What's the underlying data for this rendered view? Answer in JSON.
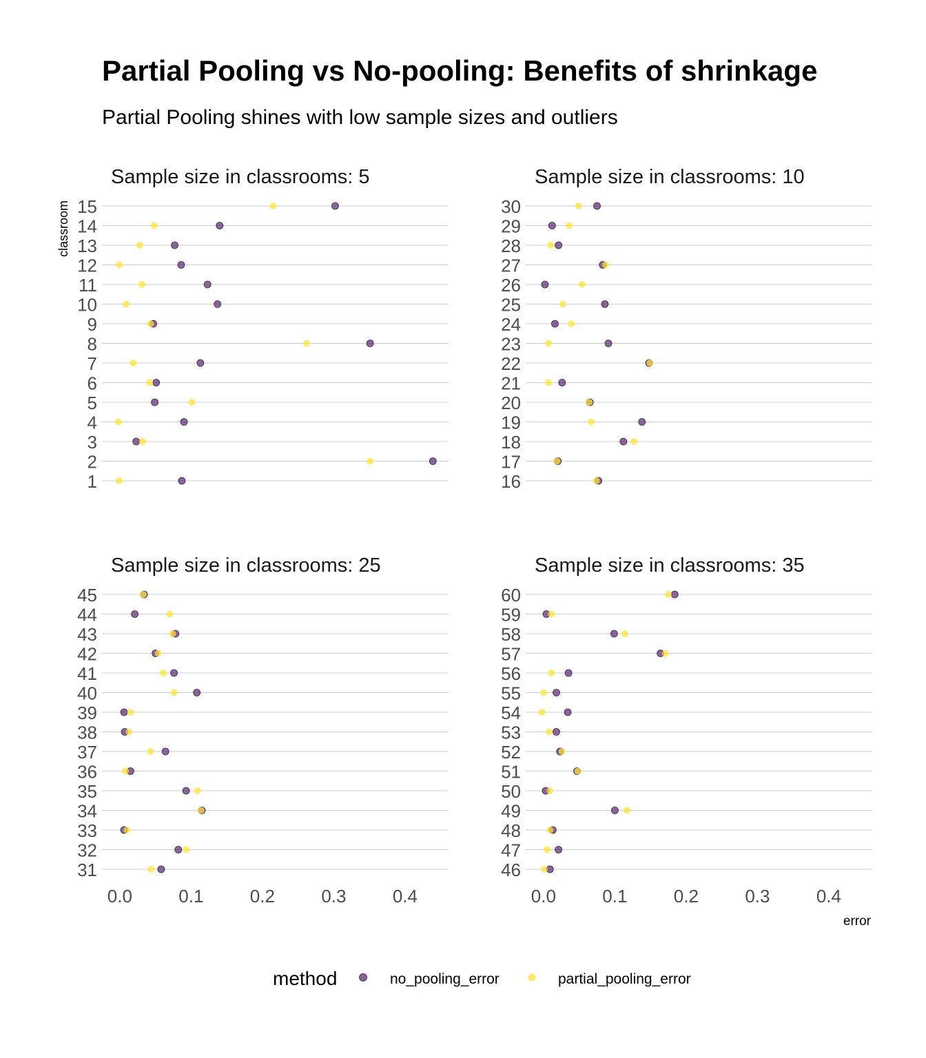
{
  "title": "Partial Pooling vs No-pooling: Benefits of shrinkage",
  "subtitle": "Partial Pooling shines with low sample sizes and outliers",
  "colors": {
    "no_pooling_error": "#5C2D72",
    "partial_pooling_error": "#FDE333",
    "grid": "#CCCCCC",
    "tick_text": "#4D4D4D"
  },
  "chart_data": {
    "type": "scatter",
    "xlabel": "error",
    "ylabel": "classroom",
    "xlim": [
      -0.025,
      0.46
    ],
    "x_ticks": [
      "0.0",
      "0.1",
      "0.2",
      "0.3",
      "0.4"
    ],
    "x_tick_values": [
      0,
      0.1,
      0.2,
      0.3,
      0.4
    ],
    "grid": true,
    "legend": {
      "title": "method",
      "position": "bottom",
      "entries": [
        "no_pooling_error",
        "partial_pooling_error"
      ]
    },
    "facets": [
      {
        "title": "Sample size in classrooms: 5",
        "classrooms": [
          1,
          2,
          3,
          4,
          5,
          6,
          7,
          8,
          9,
          10,
          11,
          12,
          13,
          14,
          15
        ],
        "no_pooling_error": [
          0.087,
          0.439,
          0.023,
          0.09,
          0.049,
          0.051,
          0.113,
          0.351,
          0.047,
          0.137,
          0.123,
          0.086,
          0.077,
          0.14,
          0.302
        ],
        "partial_pooling_error": [
          -0.001,
          0.351,
          0.032,
          -0.002,
          0.101,
          0.042,
          0.019,
          0.262,
          0.043,
          0.009,
          0.031,
          -0.001,
          0.028,
          0.048,
          0.215
        ]
      },
      {
        "title": "Sample size in classrooms: 10",
        "classrooms": [
          16,
          17,
          18,
          19,
          20,
          21,
          22,
          23,
          24,
          25,
          26,
          27,
          28,
          29,
          30
        ],
        "no_pooling_error": [
          0.077,
          0.02,
          0.112,
          0.138,
          0.065,
          0.026,
          0.148,
          0.091,
          0.016,
          0.086,
          0.002,
          0.083,
          0.021,
          0.012,
          0.075
        ],
        "partial_pooling_error": [
          0.074,
          0.019,
          0.127,
          0.067,
          0.064,
          0.007,
          0.149,
          0.007,
          0.039,
          0.027,
          0.054,
          0.087,
          0.01,
          0.036,
          0.049
        ]
      },
      {
        "title": "Sample size in classrooms: 25",
        "classrooms": [
          31,
          32,
          33,
          34,
          35,
          36,
          37,
          38,
          39,
          40,
          41,
          42,
          43,
          44,
          45
        ],
        "no_pooling_error": [
          0.058,
          0.082,
          0.006,
          0.115,
          0.093,
          0.015,
          0.064,
          0.007,
          0.006,
          0.108,
          0.076,
          0.05,
          0.078,
          0.021,
          0.034
        ],
        "partial_pooling_error": [
          0.044,
          0.093,
          0.01,
          0.114,
          0.109,
          0.008,
          0.043,
          0.013,
          0.015,
          0.076,
          0.061,
          0.054,
          0.074,
          0.07,
          0.033
        ]
      },
      {
        "title": "Sample size in classrooms: 35",
        "classrooms": [
          46,
          47,
          48,
          49,
          50,
          51,
          52,
          53,
          54,
          55,
          56,
          57,
          58,
          59,
          60
        ],
        "no_pooling_error": [
          0.009,
          0.021,
          0.013,
          0.1,
          0.003,
          0.047,
          0.023,
          0.018,
          0.034,
          0.018,
          0.035,
          0.164,
          0.099,
          0.004,
          0.184
        ],
        "partial_pooling_error": [
          0.001,
          0.005,
          0.009,
          0.117,
          0.009,
          0.048,
          0.026,
          0.008,
          -0.002,
          0.0,
          0.011,
          0.171,
          0.114,
          0.011,
          0.175
        ]
      }
    ]
  }
}
